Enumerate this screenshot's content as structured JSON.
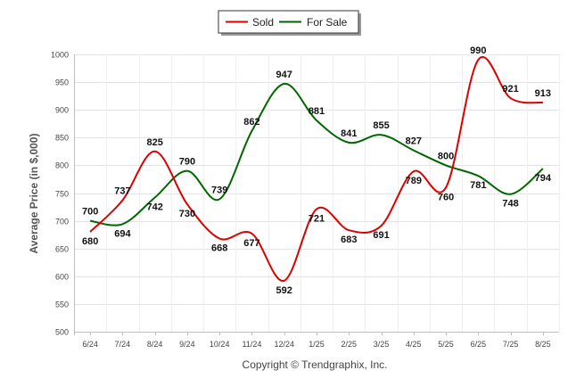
{
  "chart_data": {
    "type": "line",
    "title": "",
    "xlabel": "",
    "ylabel": "Average Price (in $,000)",
    "categories": [
      "6/24",
      "7/24",
      "8/24",
      "9/24",
      "10/24",
      "11/24",
      "12/24",
      "1/25",
      "2/25",
      "3/25",
      "4/25",
      "5/25",
      "6/25",
      "7/25",
      "8/25"
    ],
    "series": [
      {
        "name": "Sold",
        "color": "#dd0000",
        "values": [
          680,
          737,
          825,
          730,
          668,
          677,
          592,
          721,
          683,
          691,
          789,
          760,
          990,
          921,
          913
        ]
      },
      {
        "name": "For Sale",
        "color": "#006600",
        "values": [
          700,
          694,
          742,
          790,
          739,
          862,
          947,
          881,
          841,
          855,
          827,
          800,
          781,
          748,
          794
        ]
      }
    ],
    "ylim": [
      500,
      1000
    ],
    "yticks": [
      500,
      550,
      600,
      650,
      700,
      750,
      800,
      850,
      900,
      950,
      1000
    ],
    "grid": true,
    "legend_position": "top-center"
  },
  "footer": {
    "copyright": "Copyright © Trendgraphix, Inc."
  }
}
